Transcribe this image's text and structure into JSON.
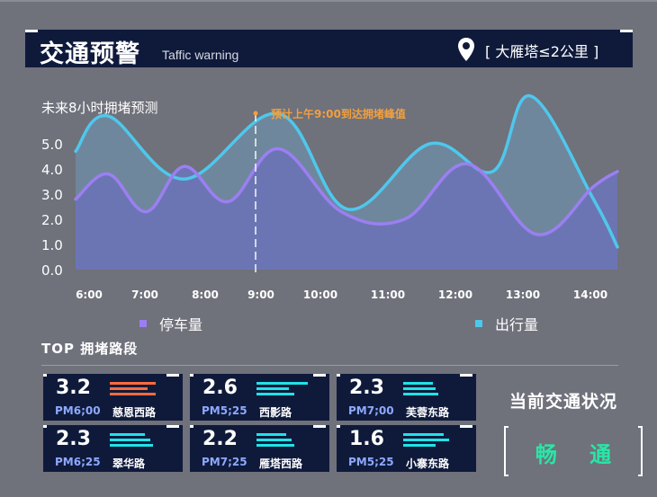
{
  "header": {
    "title": "交通预警",
    "subtitle": "Taffic warning",
    "location": "[ 大雁塔≤2公里 ]"
  },
  "icons": {
    "location": "map-pin-icon"
  },
  "colors": {
    "panel": "#0f1a3b",
    "parking": "#9b7ff2",
    "travel": "#4fc7ec",
    "peak": "#f0a040",
    "bar_high": "#ff6a3d",
    "bar_normal": "#1fe3e8",
    "status_ok": "#29e6a6"
  },
  "chart_data": {
    "type": "area",
    "title": "未来8小时拥堵预测",
    "x_ticks": [
      "6:00",
      "7:00",
      "8:00",
      "9:00",
      "10:00",
      "11:00",
      "12:00",
      "13:00",
      "14:00"
    ],
    "y_ticks": [
      "5.0",
      "4.0",
      "3.0",
      "2.0",
      "1.0",
      "0.0"
    ],
    "ylim": [
      0,
      5.0
    ],
    "series": [
      {
        "name": "停车量",
        "x": [
          5.7,
          6.3,
          6.9,
          7.5,
          8.2,
          9.0,
          10.0,
          11.0,
          12.0,
          13.1,
          14.0,
          14.5
        ],
        "y": [
          2.8,
          3.8,
          2.3,
          4.1,
          2.7,
          4.8,
          2.3,
          2.0,
          4.2,
          1.4,
          3.3,
          3.9
        ]
      },
      {
        "name": "出行量",
        "x": [
          5.7,
          6.3,
          7.5,
          9.0,
          10.1,
          11.4,
          12.4,
          13.0,
          14.0,
          14.5
        ],
        "y": [
          4.7,
          6.1,
          3.6,
          6.2,
          2.4,
          5.0,
          3.9,
          6.9,
          2.8,
          0.9
        ]
      }
    ],
    "annotation": {
      "x": 9.0,
      "text": "预计上午9:00到达拥堵峰值"
    },
    "legend_placement": "bottom"
  },
  "top_section": {
    "title": "TOP 拥堵路段",
    "roads": [
      {
        "value": "3.2",
        "time": "PM6;00",
        "name": "慈恩西路",
        "level": "high",
        "bars": [
          0.85,
          0.7,
          0.85
        ]
      },
      {
        "value": "2.6",
        "time": "PM5;25",
        "name": "西影路",
        "level": "normal",
        "bars": [
          0.95,
          0.6,
          0.7
        ]
      },
      {
        "value": "2.3",
        "time": "PM7;00",
        "name": "芙蓉东路",
        "level": "normal",
        "bars": [
          0.55,
          0.6,
          0.65
        ]
      },
      {
        "value": "2.3",
        "time": "PM6;25",
        "name": "翠华路",
        "level": "normal",
        "bars": [
          0.65,
          0.75,
          0.8
        ]
      },
      {
        "value": "2.2",
        "time": "PM7;25",
        "name": "雁塔西路",
        "level": "normal",
        "bars": [
          0.55,
          0.65,
          0.7
        ]
      },
      {
        "value": "1.6",
        "time": "PM5;25",
        "name": "小寨东路",
        "level": "normal",
        "bars": [
          0.75,
          0.85,
          0.6
        ]
      }
    ]
  },
  "status": {
    "title": "当前交通状况",
    "value": "畅 通"
  }
}
